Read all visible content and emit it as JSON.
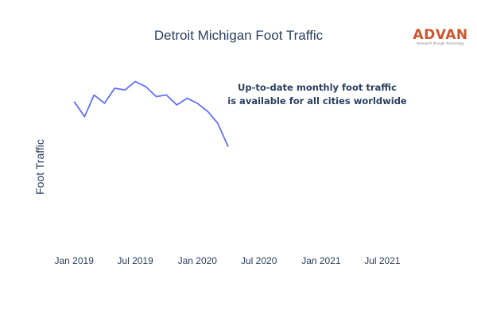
{
  "chart_data": {
    "type": "line",
    "title": "Detroit Michigan Foot Traffic",
    "ylabel": "Foot Traffic",
    "xlabel": "",
    "annotation": [
      "Up-to-date monthly foot traffic",
      "is available for all cities worldwide"
    ],
    "x_ticks": [
      "Jan 2019",
      "Jul 2019",
      "Jan 2020",
      "Jul 2020",
      "Jan 2021",
      "Jul 2021"
    ],
    "xlim": [
      "2018-12-01",
      "2021-10-01"
    ],
    "ylim": [
      0,
      100
    ],
    "series": [
      {
        "color": "#636efa",
        "x": [
          "2019-01-01",
          "2019-02-01",
          "2019-03-01",
          "2019-04-01",
          "2019-05-01",
          "2019-06-01",
          "2019-07-01",
          "2019-08-01",
          "2019-09-01",
          "2019-10-01",
          "2019-11-01",
          "2019-12-01",
          "2020-01-01",
          "2020-02-01",
          "2020-03-01",
          "2020-04-01"
        ],
        "values": [
          82,
          73,
          86,
          81,
          90,
          89,
          94,
          91,
          85,
          86,
          80,
          84,
          81,
          76,
          69,
          55
        ]
      }
    ],
    "grid": false,
    "legend": "none"
  },
  "logo": {
    "text": "ADVAN",
    "tagline": "Research through Technology",
    "color": "#d0542b"
  }
}
